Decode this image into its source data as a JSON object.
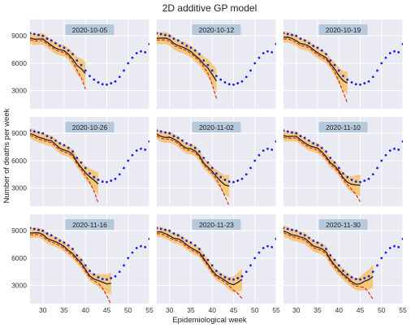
{
  "figure": {
    "title": "2D additive GP model",
    "xlabel": "Epidemiological week",
    "ylabel": "Number of deaths per week",
    "colors": {
      "background": "#EAEAF2",
      "grid": "#FFFFFF",
      "observed": "#1F1FE8",
      "mean": "#222222",
      "band": "#F5C26B",
      "reported": "#E3261B",
      "label_box": "#B6C8DC"
    }
  },
  "chart_data": {
    "type": "line",
    "layout": "3x3 small multiples",
    "x_ticks": [
      30,
      35,
      40,
      45,
      50,
      55
    ],
    "y_ticks": [
      3000,
      6000,
      9000
    ],
    "xlim": [
      27,
      55
    ],
    "ylim": [
      1000,
      10800
    ],
    "observed_weekly_deaths": {
      "x": [
        27,
        28,
        29,
        30,
        31,
        32,
        33,
        34,
        35,
        36,
        37,
        38,
        39,
        40,
        41,
        42,
        43,
        44,
        45,
        46,
        47,
        48,
        49,
        50,
        51,
        52,
        53,
        54,
        55
      ],
      "y": [
        9300,
        9200,
        9100,
        9000,
        8700,
        8500,
        8200,
        7900,
        7700,
        7400,
        7000,
        6300,
        5800,
        5200,
        4600,
        4200,
        3900,
        3700,
        3650,
        3800,
        4000,
        4500,
        5200,
        6000,
        6600,
        7100,
        7300,
        7200,
        8100
      ]
    },
    "panels": [
      {
        "label": "2020-10-05",
        "end_week": 40,
        "reported_drop": 1500,
        "band_halfwidth": 900
      },
      {
        "label": "2020-10-12",
        "end_week": 41,
        "reported_drop": 1700,
        "band_halfwidth": 950
      },
      {
        "label": "2020-10-19",
        "end_week": 42,
        "reported_drop": 2000,
        "band_halfwidth": 850
      },
      {
        "label": "2020-10-26",
        "end_week": 43,
        "reported_drop": 1900,
        "band_halfwidth": 850
      },
      {
        "label": "2020-11-02",
        "end_week": 44,
        "reported_drop": 2000,
        "band_halfwidth": 850
      },
      {
        "label": "2020-11-10",
        "end_week": 45,
        "reported_drop": 1600,
        "band_halfwidth": 800
      },
      {
        "label": "2020-11-16",
        "end_week": 46,
        "reported_drop": 2100,
        "band_halfwidth": 800
      },
      {
        "label": "2020-11-23",
        "end_week": 47,
        "reported_drop": 1900,
        "band_halfwidth": 800
      },
      {
        "label": "2020-11-30",
        "end_week": 48,
        "reported_drop": 2300,
        "band_halfwidth": 900
      }
    ]
  }
}
